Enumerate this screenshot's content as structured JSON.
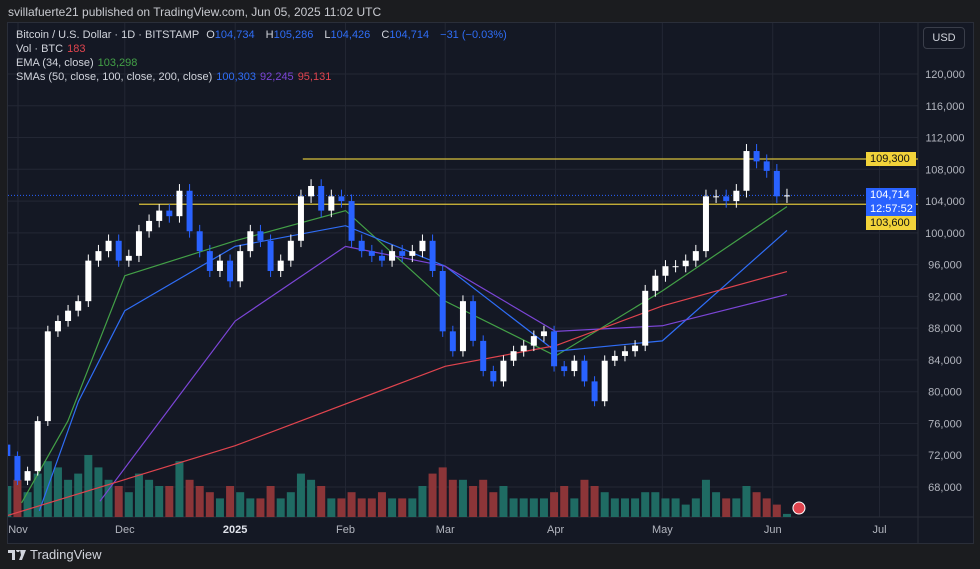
{
  "header": {
    "published": "svillafuerte21 published on TradingView.com, Jun 05, 2025 11:02 UTC"
  },
  "legend": {
    "symbol": "Bitcoin / U.S. Dollar · 1D · BITSTAMP",
    "o_label": "O",
    "o": "104,734",
    "h_label": "H",
    "h": "105,286",
    "l_label": "L",
    "l": "104,426",
    "c_label": "C",
    "c": "104,714",
    "change": "−31 (−0.03%)",
    "vol_label": "Vol · BTC",
    "vol": "183",
    "ema_label": "EMA (34, close)",
    "ema": "103,298",
    "sma_label": "SMAs (50, close, 100, close, 200, close)",
    "sma50": "100,303",
    "sma100": "92,245",
    "sma200": "95,131"
  },
  "currency": "USD",
  "price_labels": {
    "resistance": "109,300",
    "current": "104,714",
    "countdown": "12:57:52",
    "support": "103,600"
  },
  "footer": {
    "brand": "TradingView"
  },
  "colors": {
    "up": "#ffffff",
    "down": "#2962ff",
    "vol_up": "#1f6b63",
    "vol_down": "#8c3538",
    "ema": "#43a047",
    "sma50": "#2f6df6",
    "sma100": "#7b45d6",
    "sma200": "#e0444e",
    "level": "#d8c03a"
  },
  "chart_data": {
    "type": "candlestick",
    "start": "2024-10-29",
    "end": "2025-06-05",
    "y_ticks": [
      68000,
      72000,
      76000,
      80000,
      84000,
      88000,
      92000,
      96000,
      100000,
      104000,
      108000,
      112000,
      116000,
      120000
    ],
    "x_ticks": [
      {
        "label": "Nov",
        "date": "2024-11-01"
      },
      {
        "label": "Dec",
        "date": "2024-12-01"
      },
      {
        "label": "2025",
        "date": "2025-01-01",
        "bold": true
      },
      {
        "label": "Feb",
        "date": "2025-02-01"
      },
      {
        "label": "Mar",
        "date": "2025-03-01"
      },
      {
        "label": "Apr",
        "date": "2025-04-01"
      },
      {
        "label": "May",
        "date": "2025-05-01"
      },
      {
        "label": "Jun",
        "date": "2025-06-01"
      },
      {
        "label": "Jul",
        "date": "2025-07-01"
      }
    ],
    "ylim": [
      65000,
      121500
    ],
    "closes": [
      71900,
      68800,
      70000,
      76300,
      87600,
      88900,
      90200,
      91400,
      96500,
      97700,
      99000,
      96500,
      97100,
      100200,
      101500,
      102800,
      102100,
      105300,
      100200,
      97700,
      95200,
      96500,
      93900,
      97700,
      100200,
      99000,
      95200,
      96500,
      99000,
      104600,
      105900,
      102800,
      104600,
      104000,
      99000,
      97700,
      97100,
      96500,
      97700,
      97100,
      97700,
      99000,
      95200,
      87600,
      85100,
      91400,
      86400,
      82600,
      81300,
      83900,
      85100,
      85800,
      87000,
      87600,
      83200,
      82600,
      83900,
      81300,
      78800,
      83900,
      84500,
      85100,
      85800,
      92700,
      94600,
      95800,
      95800,
      96500,
      97700,
      104600,
      104600,
      104000,
      105300,
      110300,
      109000,
      107800,
      104600,
      104714
    ],
    "volume_relative": [
      0.5,
      0.6,
      0.4,
      0.7,
      0.9,
      0.8,
      0.6,
      0.7,
      1.0,
      0.8,
      0.6,
      0.5,
      0.4,
      0.7,
      0.6,
      0.5,
      0.5,
      0.9,
      0.6,
      0.5,
      0.4,
      0.3,
      0.5,
      0.4,
      0.3,
      0.3,
      0.5,
      0.3,
      0.4,
      0.7,
      0.6,
      0.5,
      0.3,
      0.3,
      0.4,
      0.3,
      0.3,
      0.4,
      0.3,
      0.3,
      0.3,
      0.5,
      0.7,
      0.8,
      0.6,
      0.6,
      0.5,
      0.6,
      0.4,
      0.5,
      0.3,
      0.3,
      0.3,
      0.3,
      0.4,
      0.5,
      0.3,
      0.6,
      0.5,
      0.4,
      0.3,
      0.3,
      0.3,
      0.4,
      0.4,
      0.3,
      0.3,
      0.2,
      0.3,
      0.6,
      0.4,
      0.3,
      0.3,
      0.5,
      0.4,
      0.3,
      0.2,
      0.05
    ],
    "series": [
      {
        "name": "EMA (34, close)",
        "points": [
          [
            "2024-11-02",
            66000
          ],
          [
            "2024-11-15",
            76300
          ],
          [
            "2024-12-01",
            94600
          ],
          [
            "2025-01-01",
            99000
          ],
          [
            "2025-02-01",
            102800
          ],
          [
            "2025-03-01",
            91400
          ],
          [
            "2025-04-01",
            84500
          ],
          [
            "2025-05-01",
            92700
          ],
          [
            "2025-06-05",
            103298
          ]
        ]
      },
      {
        "name": "SMA 50",
        "points": [
          [
            "2024-11-07",
            65000
          ],
          [
            "2024-11-18",
            78800
          ],
          [
            "2024-12-01",
            90200
          ],
          [
            "2025-01-01",
            98300
          ],
          [
            "2025-02-01",
            100900
          ],
          [
            "2025-03-01",
            95800
          ],
          [
            "2025-04-01",
            85100
          ],
          [
            "2025-05-01",
            86400
          ],
          [
            "2025-06-05",
            100303
          ]
        ]
      },
      {
        "name": "SMA 100",
        "points": [
          [
            "2024-11-24",
            66200
          ],
          [
            "2025-01-01",
            88900
          ],
          [
            "2025-02-01",
            98300
          ],
          [
            "2025-03-01",
            95800
          ],
          [
            "2025-04-01",
            87600
          ],
          [
            "2025-05-01",
            88300
          ],
          [
            "2025-06-05",
            92245
          ]
        ]
      },
      {
        "name": "SMA 200",
        "points": [
          [
            "2024-10-29",
            64400
          ],
          [
            "2025-01-01",
            73200
          ],
          [
            "2025-03-01",
            83200
          ],
          [
            "2025-04-01",
            85800
          ],
          [
            "2025-05-01",
            90800
          ],
          [
            "2025-06-05",
            95131
          ]
        ]
      }
    ],
    "levels": [
      {
        "value": 109300,
        "from": "2025-01-20"
      },
      {
        "value": 103600,
        "from": "2024-12-05"
      }
    ],
    "current_price": 104714
  }
}
